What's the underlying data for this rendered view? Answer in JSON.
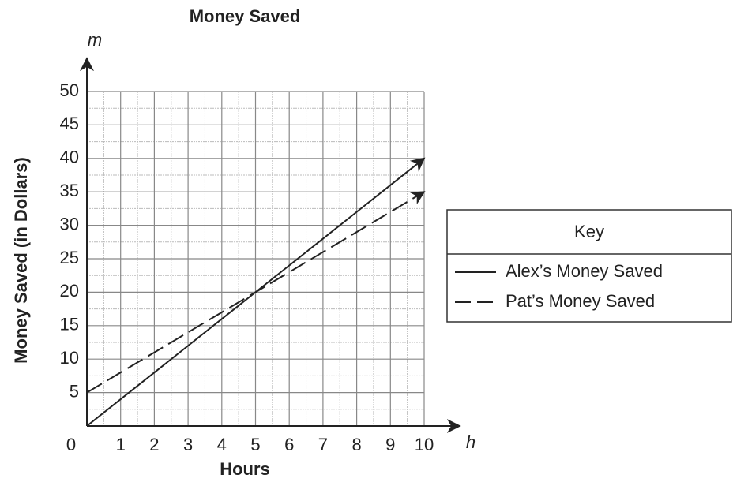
{
  "chart_data": {
    "type": "line",
    "title": "Money Saved",
    "x_label": "Hours",
    "y_label": "Money Saved (in Dollars)",
    "x_axis_letter": "h",
    "y_axis_letter": "m",
    "legend_title": "Key",
    "legend": "right",
    "grid": true,
    "x": [
      0,
      1,
      2,
      3,
      4,
      5,
      6,
      7,
      8,
      9,
      10
    ],
    "series": [
      {
        "name": "Alex’s Money Saved",
        "color": "#222222",
        "dashed": false,
        "values": [
          0,
          4,
          8,
          12,
          16,
          20,
          24,
          28,
          32,
          36,
          40
        ]
      },
      {
        "name": "Pat’s Money Saved",
        "color": "#222222",
        "dashed": true,
        "values": [
          5,
          8,
          11,
          14,
          17,
          20,
          23,
          26,
          29,
          32,
          35
        ]
      }
    ],
    "xlim": [
      0,
      10
    ],
    "ylim": [
      0,
      50
    ],
    "xticks": [
      0,
      1,
      2,
      3,
      4,
      5,
      6,
      7,
      8,
      9,
      10
    ],
    "yticks": [
      5,
      10,
      15,
      20,
      25,
      30,
      35,
      40,
      45,
      50
    ]
  }
}
